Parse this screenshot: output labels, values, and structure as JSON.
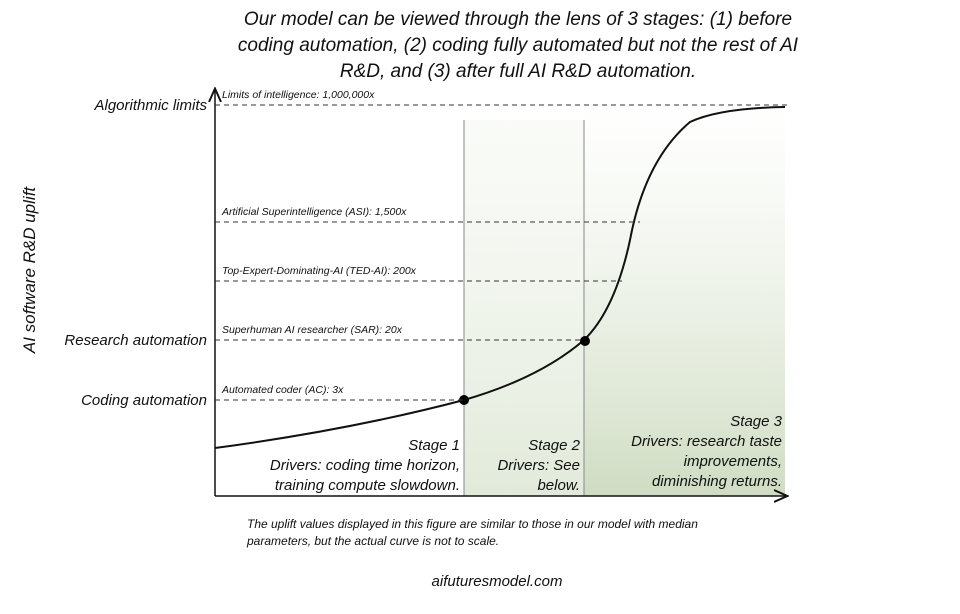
{
  "title": [
    "Our model can be viewed through the lens of 3 stages: (1) before",
    "coding automation, (2) coding fully automated but not the rest of AI",
    "R&D, and (3) after full AI R&D automation."
  ],
  "y_axis_label": "AI software R&D uplift",
  "levels": [
    {
      "axis_label": "Algorithmic limits",
      "line_label": "Limits of intelligence: 1,000,000x"
    },
    {
      "axis_label": null,
      "line_label": "Artificial Superintelligence (ASI): 1,500x"
    },
    {
      "axis_label": null,
      "line_label": "Top-Expert-Dominating-AI (TED-AI): 200x"
    },
    {
      "axis_label": "Research automation",
      "line_label": "Superhuman AI researcher (SAR): 20x"
    },
    {
      "axis_label": "Coding automation",
      "line_label": "Automated coder (AC): 3x"
    }
  ],
  "stages": [
    {
      "name": "Stage 1",
      "drivers": [
        "Drivers: coding time horizon,",
        "training compute slowdown."
      ]
    },
    {
      "name": "Stage 2",
      "drivers": [
        "Drivers: See",
        "below."
      ]
    },
    {
      "name": "Stage 3",
      "drivers": [
        "Drivers: research taste",
        "improvements,",
        "diminishing returns."
      ]
    }
  ],
  "footnote": [
    "The uplift values displayed in this figure are similar to those in our model with median",
    "parameters, but the actual curve is not to scale."
  ],
  "source": "aifuturesmodel.com"
}
